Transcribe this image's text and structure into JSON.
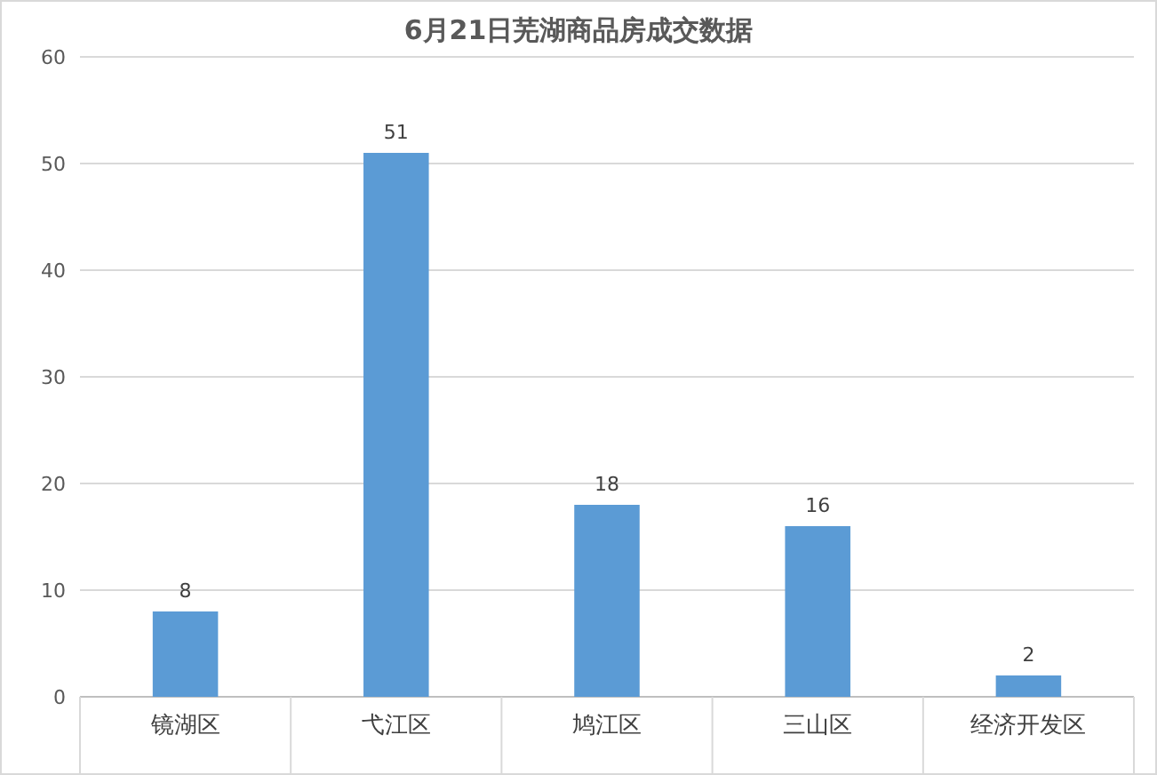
{
  "chart_data": {
    "type": "bar",
    "title": "6月21日芜湖商品房成交数据",
    "categories": [
      "镜湖区",
      "弋江区",
      "鸠江区",
      "三山区",
      "经济开发区"
    ],
    "values": [
      8,
      51,
      18,
      16,
      2
    ],
    "color": "#5b9bd5",
    "ylim": [
      0,
      60
    ],
    "yticks": [
      0,
      10,
      20,
      30,
      40,
      50,
      60
    ],
    "grid": "y",
    "data_labels": true
  }
}
